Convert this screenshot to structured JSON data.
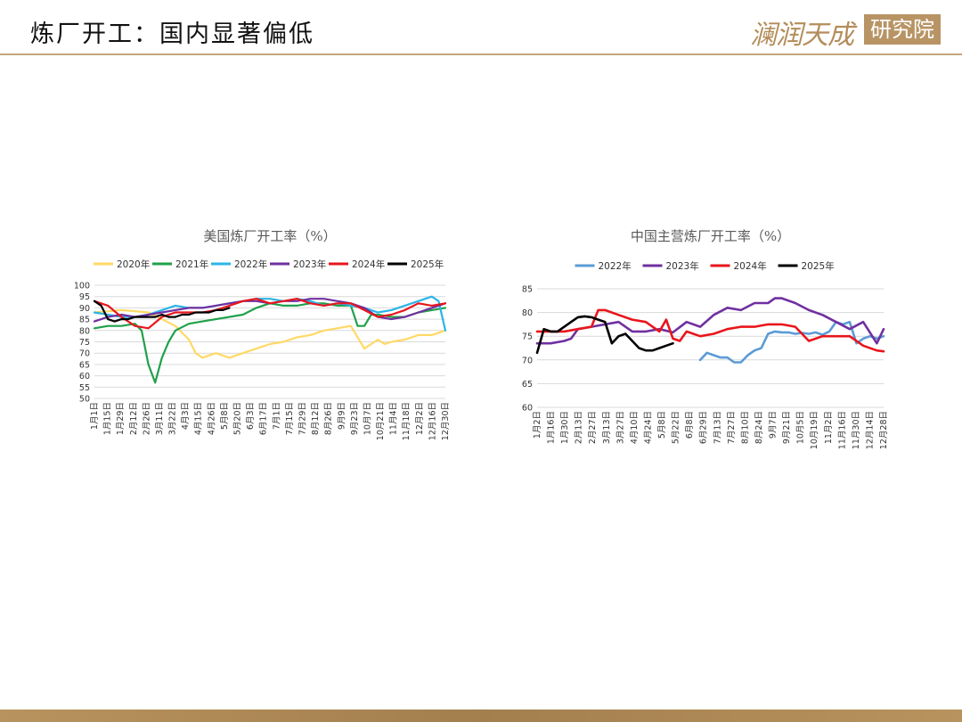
{
  "header": {
    "title": "炼厂开工：国内显著偏低",
    "logo_text": "澜润天成",
    "logo_box": "研究院"
  },
  "colors": {
    "2020": "#ffd966",
    "2021": "#1fa14a",
    "2022": "#2ab4e6",
    "2023": "#7030a0",
    "2024": "#e8161c",
    "2025": "#000000",
    "china_2022": "#5b9bd5"
  },
  "chart_data": [
    {
      "type": "line",
      "title": "美国炼厂开工率（%）",
      "ylim": [
        50,
        100
      ],
      "yticks": [
        50,
        55,
        60,
        65,
        70,
        75,
        80,
        85,
        90,
        95,
        100
      ],
      "grid": true,
      "legend": "top",
      "x_labels": [
        "1月1日",
        "1月15日",
        "1月29日",
        "2月12日",
        "2月26日",
        "3月11日",
        "3月22日",
        "4月3日",
        "4月15日",
        "4月26日",
        "5月8日",
        "5月20日",
        "6月3日",
        "6月17日",
        "7月1日",
        "7月15日",
        "7月29日",
        "8月12日",
        "8月26日",
        "9月9日",
        "9月23日",
        "10月7日",
        "10月21日",
        "11月4日",
        "11月18日",
        "12月2日",
        "12月16日",
        "12月30日"
      ],
      "x_count": 53,
      "series": [
        {
          "name": "2020年",
          "color_key": "2020",
          "x": [
            0,
            4,
            8,
            12,
            14,
            15,
            16,
            17,
            18,
            20,
            22,
            24,
            26,
            28,
            30,
            32,
            34,
            36,
            38,
            40,
            42,
            43,
            44,
            46,
            48,
            50,
            52
          ],
          "values": [
            88,
            89,
            88,
            82,
            76,
            70,
            68,
            69,
            70,
            68,
            70,
            72,
            74,
            75,
            77,
            78,
            80,
            81,
            82,
            72,
            76,
            74,
            75,
            76,
            78,
            78,
            80
          ]
        },
        {
          "name": "2021年",
          "color_key": "2021",
          "x": [
            0,
            2,
            4,
            6,
            7,
            8,
            9,
            10,
            11,
            12,
            14,
            16,
            18,
            20,
            22,
            24,
            26,
            28,
            30,
            32,
            34,
            36,
            38,
            39,
            40,
            41,
            42,
            44,
            46,
            48,
            50,
            52
          ],
          "values": [
            81,
            82,
            82,
            83,
            80,
            65,
            57,
            68,
            75,
            80,
            83,
            84,
            85,
            86,
            87,
            90,
            92,
            91,
            91,
            92,
            92,
            91,
            91,
            82,
            82,
            87,
            87,
            86,
            86,
            88,
            89,
            90
          ]
        },
        {
          "name": "2022年",
          "color_key": "2022",
          "x": [
            0,
            2,
            4,
            6,
            8,
            10,
            12,
            14,
            16,
            18,
            20,
            22,
            24,
            26,
            28,
            30,
            32,
            34,
            36,
            38,
            40,
            42,
            44,
            46,
            48,
            50,
            51,
            52
          ],
          "values": [
            88,
            87,
            86,
            86,
            87,
            89,
            91,
            90,
            90,
            91,
            92,
            93,
            94,
            94,
            93,
            94,
            93,
            91,
            92,
            91,
            90,
            88,
            89,
            91,
            93,
            95,
            93,
            80
          ]
        },
        {
          "name": "2023年",
          "color_key": "2023",
          "x": [
            0,
            2,
            4,
            6,
            8,
            10,
            12,
            14,
            16,
            18,
            20,
            22,
            24,
            26,
            28,
            30,
            32,
            34,
            36,
            38,
            40,
            42,
            44,
            46,
            48,
            50,
            52
          ],
          "values": [
            84,
            86,
            87,
            86,
            87,
            88,
            89,
            90,
            90,
            91,
            92,
            93,
            93,
            92,
            93,
            93,
            94,
            94,
            93,
            92,
            90,
            86,
            85,
            86,
            88,
            90,
            92
          ]
        },
        {
          "name": "2024年",
          "color_key": "2024",
          "x": [
            0,
            2,
            4,
            6,
            8,
            10,
            12,
            14,
            16,
            18,
            20,
            22,
            24,
            26,
            28,
            30,
            32,
            34,
            36,
            38,
            40,
            42,
            44,
            46,
            48,
            50,
            52
          ],
          "values": [
            93,
            91,
            86,
            82,
            81,
            86,
            88,
            88,
            88,
            89,
            91,
            93,
            94,
            92,
            93,
            94,
            92,
            91,
            92,
            92,
            89,
            86,
            87,
            89,
            92,
            91,
            92
          ]
        },
        {
          "name": "2025年",
          "color_key": "2025",
          "x": [
            0,
            1,
            2,
            3,
            4,
            5,
            6,
            7,
            8,
            9,
            10,
            11,
            12,
            13,
            14,
            15,
            16,
            17,
            18,
            19,
            20
          ],
          "values": [
            93,
            91,
            85,
            84,
            85,
            85,
            86,
            86,
            86,
            86,
            87,
            86,
            86,
            87,
            87,
            88,
            88,
            88,
            89,
            89,
            90
          ]
        }
      ]
    },
    {
      "type": "line",
      "title": "中国主营炼厂开工率（%）",
      "ylim": [
        60,
        85
      ],
      "yticks": [
        60,
        65,
        70,
        75,
        80,
        85
      ],
      "grid": true,
      "legend": "top",
      "x_labels": [
        "1月2日",
        "1月16日",
        "1月30日",
        "2月13日",
        "2月27日",
        "3月13日",
        "3月27日",
        "4月10日",
        "4月24日",
        "5月8日",
        "5月22日",
        "6月8日",
        "6月29日",
        "7月13日",
        "7月27日",
        "8月10日",
        "8月24日",
        "9月7日",
        "9月21日",
        "10月5日",
        "10月19日",
        "11月2日",
        "11月16日",
        "11月30日",
        "12月14日",
        "12月28日"
      ],
      "x_count": 52,
      "series": [
        {
          "name": "2022年",
          "color_key": "china_2022",
          "x": [
            24,
            25,
            26,
            27,
            28,
            29,
            30,
            31,
            32,
            33,
            34,
            35,
            36,
            37,
            38,
            39,
            40,
            41,
            42,
            43,
            44,
            45,
            46,
            47,
            48,
            49,
            50,
            51
          ],
          "values": [
            70,
            71.5,
            71,
            70.5,
            70.5,
            69.5,
            69.5,
            71,
            72,
            72.5,
            75.5,
            76,
            75.8,
            75.8,
            75.5,
            75.7,
            75.5,
            75.8,
            75.3,
            76,
            78,
            77.5,
            78,
            73.5,
            74.5,
            75,
            74.5,
            75
          ]
        },
        {
          "name": "2023年",
          "color_key": "2023",
          "x": [
            0,
            2,
            4,
            5,
            6,
            8,
            10,
            12,
            14,
            16,
            18,
            20,
            22,
            24,
            26,
            28,
            30,
            32,
            34,
            35,
            36,
            38,
            40,
            42,
            44,
            46,
            48,
            50,
            51
          ],
          "values": [
            73.5,
            73.5,
            74,
            74.5,
            76.5,
            77,
            77.5,
            78,
            76,
            76,
            76.5,
            75.8,
            78,
            77,
            79.5,
            81,
            80.5,
            82,
            82,
            83,
            83,
            82,
            80.5,
            79.5,
            78,
            76.5,
            78,
            73.5,
            76.5
          ]
        },
        {
          "name": "2024年",
          "color_key": "2024",
          "x": [
            0,
            2,
            4,
            6,
            8,
            9,
            10,
            12,
            14,
            16,
            18,
            19,
            20,
            21,
            22,
            24,
            26,
            28,
            30,
            32,
            34,
            36,
            38,
            40,
            42,
            44,
            46,
            48,
            50,
            51
          ],
          "values": [
            76,
            76,
            76,
            76.5,
            77,
            80.5,
            80.5,
            79.5,
            78.5,
            78,
            76,
            78.5,
            74.5,
            74,
            76,
            75,
            75.5,
            76.5,
            77,
            77,
            77.5,
            77.5,
            77,
            74,
            75,
            75,
            75,
            73,
            72,
            71.8
          ]
        },
        {
          "name": "2025年",
          "color_key": "2025",
          "x": [
            0,
            1,
            2,
            3,
            4,
            5,
            6,
            7,
            8,
            9,
            10,
            11,
            12,
            13,
            14,
            15,
            16,
            17,
            18,
            19,
            20
          ],
          "values": [
            71.5,
            76.5,
            76,
            76,
            77,
            78,
            79,
            79.2,
            79,
            78.5,
            78,
            73.5,
            75,
            75.5,
            74,
            72.5,
            72,
            72,
            72.5,
            73,
            73.5
          ]
        }
      ]
    }
  ]
}
